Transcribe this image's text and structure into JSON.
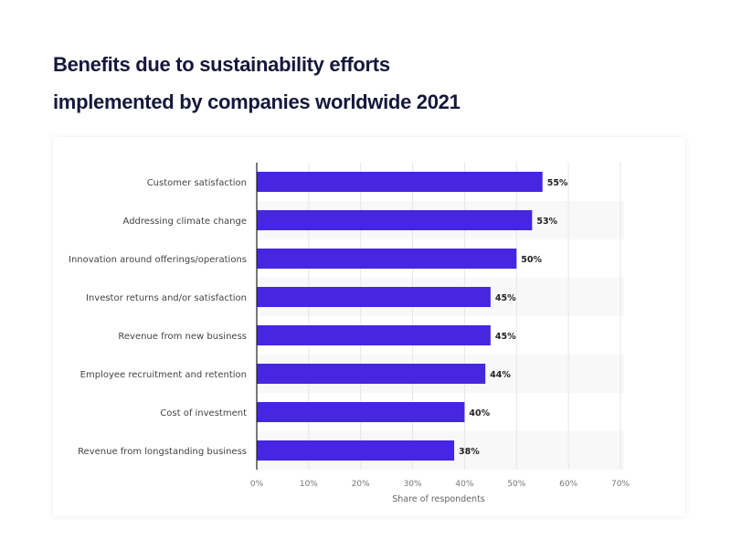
{
  "chart_data": {
    "type": "bar",
    "orientation": "horizontal",
    "title": "Benefits due to sustainability efforts implemented by companies worldwide 2021",
    "title_lines": [
      "Benefits due to sustainability efforts",
      "implemented by companies worldwide 2021"
    ],
    "categories": [
      "Customer satisfaction",
      "Addressing climate change",
      "Innovation around offerings/operations",
      "Investor returns and/or satisfaction",
      "Revenue from new business",
      "Employee recruitment and retention",
      "Cost of investment",
      "Revenue from longstanding business"
    ],
    "values": [
      55,
      53,
      50,
      45,
      45,
      44,
      40,
      38
    ],
    "data_labels": [
      "55%",
      "53%",
      "50%",
      "45%",
      "45%",
      "44%",
      "40%",
      "38%"
    ],
    "xlabel": "Share of respondents",
    "ylabel": "",
    "xlim": [
      0,
      70
    ],
    "xticks": [
      "0%",
      "10%",
      "20%",
      "30%",
      "40%",
      "50%",
      "60%",
      "70%"
    ],
    "grid": true,
    "bar_color": "#4626e0"
  }
}
